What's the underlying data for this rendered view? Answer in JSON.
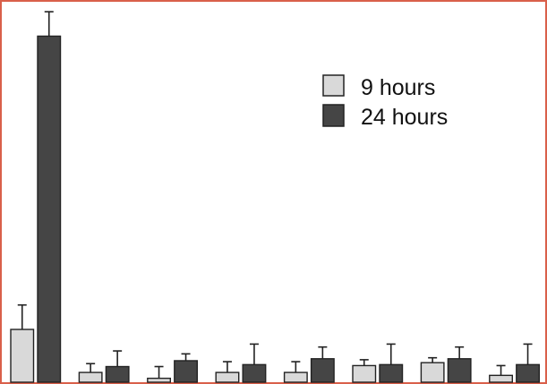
{
  "chart_data": {
    "type": "bar",
    "categories": [
      "",
      "",
      "",
      "",
      "",
      "",
      "",
      ""
    ],
    "series": [
      {
        "name": "9 hours",
        "color": "#d9d9d9",
        "values": [
          54,
          10,
          4,
          10,
          10,
          17,
          20,
          7
        ],
        "errors": [
          25,
          9,
          12,
          11,
          11,
          6,
          5,
          10
        ]
      },
      {
        "name": "24 hours",
        "color": "#454545",
        "values": [
          354,
          16,
          22,
          18,
          24,
          18,
          24,
          18
        ],
        "errors": [
          25,
          16,
          7,
          21,
          12,
          21,
          12,
          21
        ]
      }
    ],
    "ylim": [
      0,
      380
    ],
    "grid": false,
    "legend": {
      "position": "top-right"
    },
    "axis_color": "#d9604a"
  }
}
